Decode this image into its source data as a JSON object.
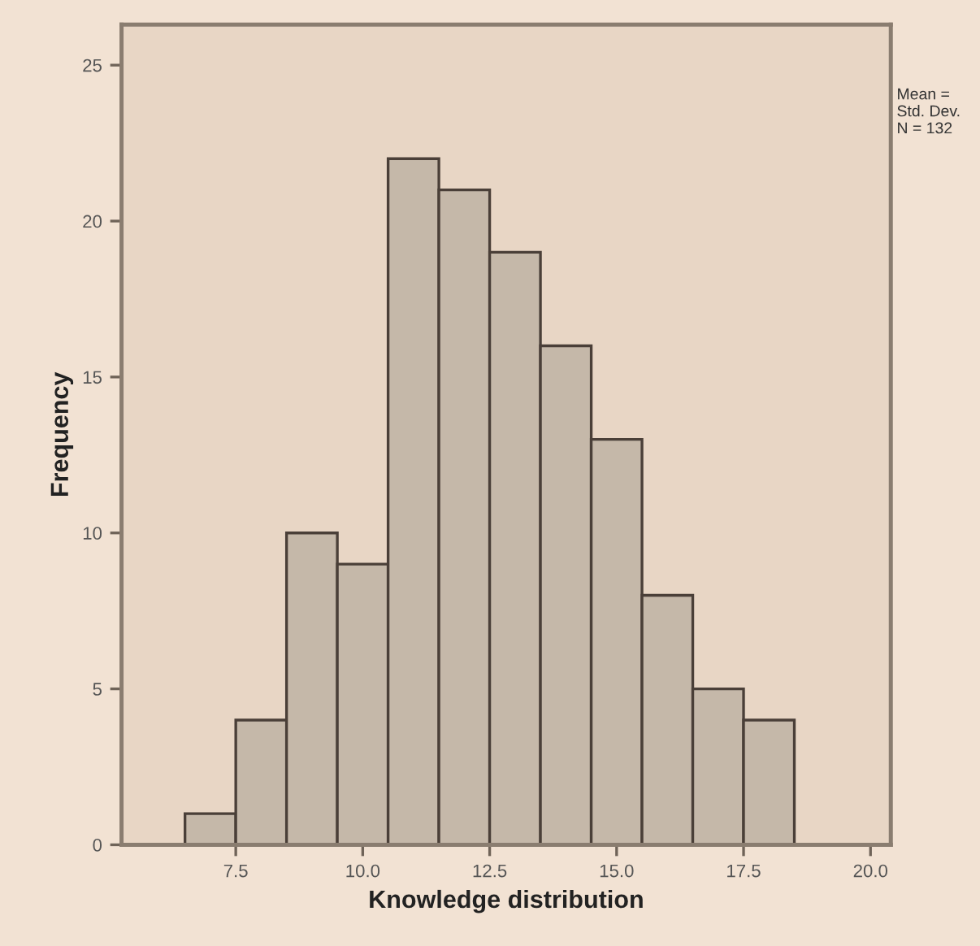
{
  "chart_data": {
    "type": "histogram",
    "xlabel": "Knowledge distribution",
    "ylabel": "Frequency",
    "bins": [
      6.5,
      7.5,
      8.5,
      9.5,
      10.5,
      11.5,
      12.5,
      13.5,
      14.5,
      15.5,
      16.5,
      17.5,
      18.5
    ],
    "values": [
      1,
      4,
      10,
      9,
      22,
      21,
      19,
      16,
      13,
      8,
      5,
      4
    ],
    "color": "#c5b8a9",
    "xlim": [
      5.25,
      20.4
    ],
    "xticks": [
      {
        "value": 7.5,
        "label": "7.5"
      },
      {
        "value": 10,
        "label": "10.0"
      },
      {
        "value": 12.5,
        "label": "12.5"
      },
      {
        "value": 15,
        "label": "15.0"
      },
      {
        "value": 17.5,
        "label": "17.5"
      },
      {
        "value": 20,
        "label": "20.0"
      }
    ],
    "ylim": [
      0,
      26.3
    ],
    "yticks": [
      0,
      5,
      10,
      15,
      20,
      25
    ],
    "annotations": [
      "Mean =",
      "Std. Dev.",
      "N = 132"
    ],
    "grid": false,
    "legend": false
  }
}
